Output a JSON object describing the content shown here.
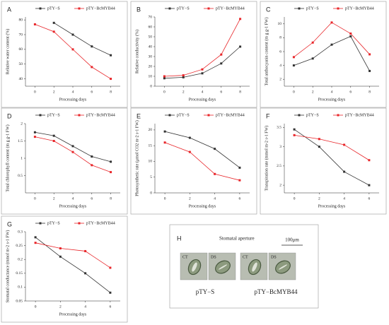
{
  "chart_data": [
    {
      "type": "line",
      "label": "A",
      "ylabel": "Relative water content (%)",
      "xlabel": "Processing days",
      "x": [
        0,
        2,
        4,
        6,
        8
      ],
      "xlim": [
        -1,
        9
      ],
      "xticks": [
        0,
        2,
        4,
        6,
        8
      ],
      "ylim": [
        35,
        82
      ],
      "yticks": [
        40,
        50,
        60,
        70,
        80
      ],
      "series": [
        {
          "name": "pTY−S",
          "color": "#333333",
          "values": [
            null,
            78,
            70,
            62,
            56
          ]
        },
        {
          "name": "pTY−BcMYB44",
          "color": "#e8262a",
          "values": [
            77,
            72,
            60,
            48,
            40
          ]
        }
      ]
    },
    {
      "type": "line",
      "label": "B",
      "ylabel": "Relative conductivity (%)",
      "xlabel": "Processing days",
      "x": [
        0,
        2,
        4,
        6,
        8
      ],
      "xlim": [
        -1,
        9
      ],
      "xticks": [
        0,
        2,
        4,
        6,
        8
      ],
      "ylim": [
        0,
        70
      ],
      "yticks": [
        0,
        10,
        20,
        30,
        40,
        50,
        60,
        70
      ],
      "series": [
        {
          "name": "pTY−S",
          "color": "#333333",
          "values": [
            8,
            9,
            13,
            23,
            40
          ]
        },
        {
          "name": "pTY−BcMYB44",
          "color": "#e8262a",
          "values": [
            10,
            11,
            17,
            32,
            68
          ]
        }
      ]
    },
    {
      "type": "line",
      "label": "C",
      "ylabel": "Total anthocyanin content (m g g-1 FW)",
      "xlabel": "Processing days",
      "x": [
        0,
        2,
        4,
        6,
        8
      ],
      "xlim": [
        -1,
        9
      ],
      "xticks": [
        0,
        2,
        4,
        6,
        8
      ],
      "ylim": [
        1,
        11
      ],
      "yticks": [
        2,
        4,
        6,
        8,
        10
      ],
      "series": [
        {
          "name": "pTY−S",
          "color": "#333333",
          "values": [
            4,
            5,
            7,
            8.2,
            3.2
          ]
        },
        {
          "name": "pTY−BcMYB44",
          "color": "#e8262a",
          "values": [
            5.2,
            7.3,
            10.2,
            8.6,
            5.6
          ]
        }
      ]
    },
    {
      "type": "line",
      "label": "D",
      "ylabel": "Total chlorophyll content (m g g-1 FW)",
      "xlabel": "Processing days",
      "x": [
        0,
        2,
        4,
        6,
        8
      ],
      "xlim": [
        -1,
        9
      ],
      "xticks": [
        0,
        2,
        4,
        6,
        8
      ],
      "ylim": [
        0,
        2
      ],
      "yticks": [
        0.5,
        1,
        1.5,
        2
      ],
      "series": [
        {
          "name": "pTY−S",
          "color": "#333333",
          "values": [
            1.75,
            1.65,
            1.35,
            1.05,
            0.9
          ]
        },
        {
          "name": "pTY−BcMYB44",
          "color": "#e8262a",
          "values": [
            1.62,
            1.5,
            1.18,
            0.8,
            0.6
          ]
        }
      ]
    },
    {
      "type": "line",
      "label": "E",
      "ylabel": "Photosynthetic rate (μmol CO2 m-2 s-1 FW)",
      "xlabel": "Processing days",
      "x": [
        0,
        2,
        4,
        6
      ],
      "xlim": [
        -0.8,
        6.8
      ],
      "xticks": [
        0,
        2,
        4,
        6
      ],
      "ylim": [
        0,
        22
      ],
      "yticks": [
        0,
        5,
        10,
        15,
        20
      ],
      "series": [
        {
          "name": "pTY−S",
          "color": "#333333",
          "values": [
            19.5,
            17.5,
            14,
            8
          ]
        },
        {
          "name": "pTY−BcMYB44",
          "color": "#e8262a",
          "values": [
            16,
            13,
            6,
            4
          ]
        }
      ]
    },
    {
      "type": "line",
      "label": "F",
      "ylabel": "Transpiration rate (mmol m-2 s-1 FW)",
      "xlabel": "Processing days",
      "x": [
        0,
        2,
        4,
        6
      ],
      "xlim": [
        -0.8,
        6.8
      ],
      "xticks": [
        0,
        2,
        4,
        6
      ],
      "ylim": [
        1.8,
        3.6
      ],
      "yticks": [
        2,
        2.5,
        3,
        3.5
      ],
      "series": [
        {
          "name": "pTY−S",
          "color": "#333333",
          "values": [
            3.45,
            3.0,
            2.35,
            2.0
          ]
        },
        {
          "name": "pTY−BcMYB44",
          "color": "#e8262a",
          "values": [
            3.3,
            3.2,
            3.05,
            2.65
          ]
        }
      ]
    },
    {
      "type": "line",
      "label": "G",
      "ylabel": "Stomatal conductance (mmol m-2 s-1 FW)",
      "xlabel": "Processing days",
      "x": [
        0,
        2,
        4,
        6
      ],
      "xlim": [
        -0.8,
        6.8
      ],
      "xticks": [
        0,
        2,
        4,
        6
      ],
      "ylim": [
        0.05,
        0.3
      ],
      "yticks": [
        0.05,
        0.1,
        0.15,
        0.2,
        0.25,
        0.3
      ],
      "series": [
        {
          "name": "pTY−S",
          "color": "#333333",
          "values": [
            0.28,
            0.21,
            0.15,
            0.08
          ]
        },
        {
          "name": "pTY−BcMYB44",
          "color": "#e8262a",
          "values": [
            0.26,
            0.24,
            0.23,
            0.17
          ]
        }
      ]
    }
  ],
  "image_panel": {
    "label": "H",
    "title": "Stomatal aperture",
    "scale": "100μm",
    "images": [
      "CT",
      "DS",
      "CT",
      "DS"
    ],
    "genotypes": [
      "pTY−S",
      "pTY−BcMYB44"
    ]
  }
}
